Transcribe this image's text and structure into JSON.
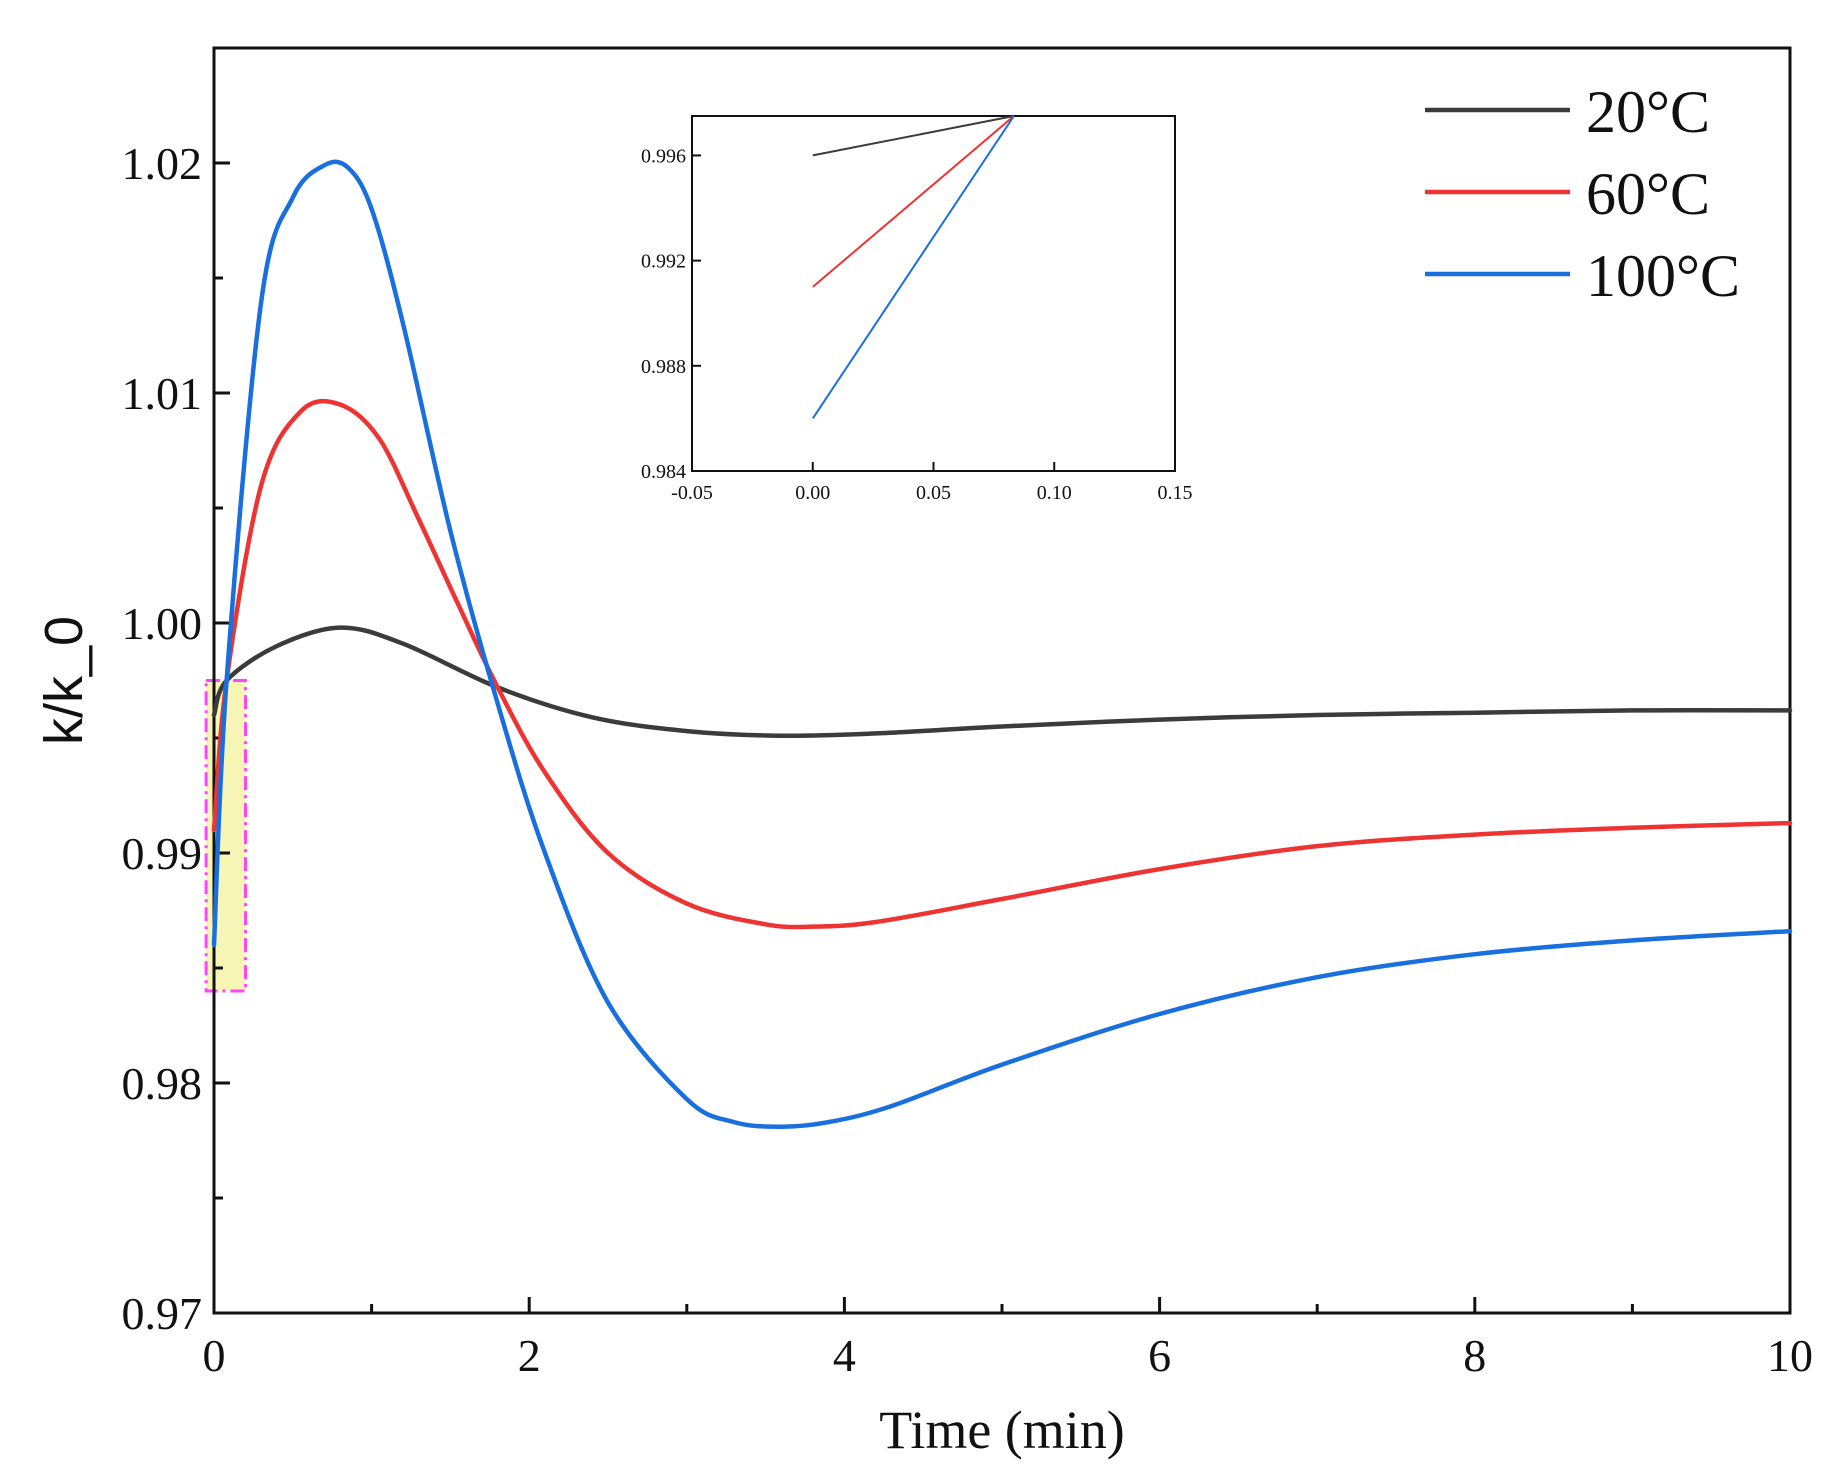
{
  "chart_data": [
    {
      "type": "line",
      "role": "main",
      "title": "",
      "xlabel": "Time (min)",
      "ylabel": "k/k_0",
      "xlim": [
        0,
        10
      ],
      "ylim": [
        0.97,
        1.025
      ],
      "x_ticks": [
        0,
        2,
        4,
        6,
        8,
        10
      ],
      "x_tick_labels": [
        "0",
        "2",
        "4",
        "6",
        "8",
        "10"
      ],
      "x_minor_ticks": [
        1,
        3,
        5,
        7,
        9
      ],
      "y_ticks": [
        0.97,
        0.98,
        0.99,
        1.0,
        1.01,
        1.02
      ],
      "y_tick_labels": [
        "0.97",
        "0.98",
        "0.99",
        "1.00",
        "1.01",
        "1.02"
      ],
      "y_minor_ticks": [
        0.975,
        0.985,
        0.995,
        1.005,
        1.015
      ],
      "grid": false,
      "legend_position": "top-right",
      "series": [
        {
          "name": "20°C",
          "color": "#3b3b3b",
          "x": [
            0,
            0.08,
            0.4,
            0.8,
            1.2,
            1.8,
            2.4,
            3.0,
            3.6,
            4.2,
            5.0,
            6.0,
            7.0,
            8.0,
            9.0,
            10.0
          ],
          "values": [
            0.996,
            0.9975,
            0.999,
            0.9998,
            0.9991,
            0.9972,
            0.9959,
            0.9953,
            0.9951,
            0.9952,
            0.9955,
            0.9958,
            0.996,
            0.9961,
            0.9962,
            0.9962
          ]
        },
        {
          "name": "60°C",
          "color": "#ee3333",
          "x": [
            0,
            0.08,
            0.3,
            0.55,
            0.8,
            1.05,
            1.3,
            1.55,
            1.8,
            2.1,
            2.5,
            3.0,
            3.5,
            3.8,
            4.2,
            5.0,
            6.0,
            7.0,
            8.0,
            9.0,
            10.0
          ],
          "values": [
            0.991,
            0.9975,
            1.006,
            1.0092,
            1.0095,
            1.008,
            1.0045,
            1.0008,
            0.9972,
            0.9935,
            0.99,
            0.9878,
            0.9869,
            0.9868,
            0.987,
            0.988,
            0.9893,
            0.9903,
            0.9908,
            0.9911,
            0.9913
          ]
        },
        {
          "name": "100°C",
          "color": "#1a6fdf",
          "x": [
            0,
            0.08,
            0.3,
            0.5,
            0.7,
            0.85,
            1.0,
            1.2,
            1.5,
            1.8,
            2.1,
            2.5,
            3.0,
            3.3,
            3.6,
            3.9,
            4.3,
            5.0,
            6.0,
            7.0,
            8.0,
            9.0,
            10.0
          ],
          "values": [
            0.986,
            0.9975,
            1.014,
            1.0185,
            1.0199,
            1.0198,
            1.018,
            1.013,
            1.004,
            0.9965,
            0.99,
            0.9835,
            0.9793,
            0.9783,
            0.9781,
            0.9783,
            0.979,
            0.9808,
            0.983,
            0.9846,
            0.9856,
            0.9862,
            0.9866
          ]
        }
      ]
    },
    {
      "type": "line",
      "role": "inset",
      "title": "",
      "xlabel": "",
      "ylabel": "",
      "xlim": [
        -0.05,
        0.15
      ],
      "ylim": [
        0.984,
        0.9975
      ],
      "x_ticks": [
        -0.05,
        0.0,
        0.05,
        0.1,
        0.15
      ],
      "x_tick_labels": [
        "-0.05",
        "0.00",
        "0.05",
        "0.10",
        "0.15"
      ],
      "y_ticks": [
        0.984,
        0.988,
        0.992,
        0.996
      ],
      "y_tick_labels": [
        "0.984",
        "0.988",
        "0.992",
        "0.996"
      ],
      "grid": false,
      "series": [
        {
          "name": "20°C",
          "color": "#3b3b3b",
          "x": [
            0,
            0.0833
          ],
          "values": [
            0.996,
            0.9975
          ]
        },
        {
          "name": "60°C",
          "color": "#ee3333",
          "x": [
            0,
            0.0833
          ],
          "values": [
            0.991,
            0.9975
          ]
        },
        {
          "name": "100°C",
          "color": "#1a6fdf",
          "x": [
            0,
            0.0833
          ],
          "values": [
            0.986,
            0.9975
          ]
        }
      ]
    }
  ],
  "highlight_region": {
    "description": "zoom region marker",
    "x_range": [
      -0.05,
      0.2
    ],
    "y_range": [
      0.984,
      0.9975
    ],
    "fill_color": "#f7f5b6",
    "border_color": "#ff44ff"
  }
}
